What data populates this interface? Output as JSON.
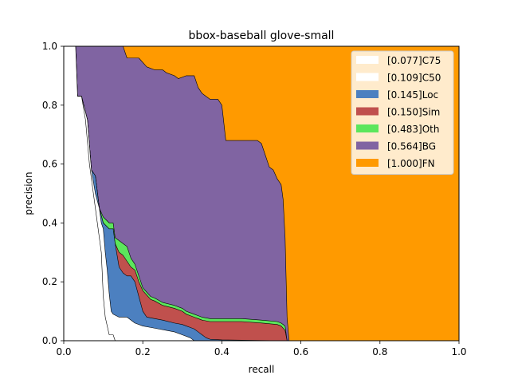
{
  "chart_data": {
    "type": "area",
    "title": "bbox-baseball glove-small",
    "xlabel": "recall",
    "ylabel": "precision",
    "xlim": [
      0,
      1
    ],
    "ylim": [
      0,
      1
    ],
    "xticks": [
      "0.0",
      "0.2",
      "0.4",
      "0.6",
      "0.8",
      "1.0"
    ],
    "yticks": [
      "0.0",
      "0.2",
      "0.4",
      "0.6",
      "0.8",
      "1.0"
    ],
    "grid": false,
    "legend_position": "top-right",
    "series": [
      {
        "name": "[0.077]C75",
        "color": "#ffffff",
        "points": [
          [
            0.0,
            1.0
          ],
          [
            0.03,
            1.0
          ],
          [
            0.035,
            0.83
          ],
          [
            0.045,
            0.83
          ],
          [
            0.055,
            0.75
          ],
          [
            0.065,
            0.6
          ],
          [
            0.075,
            0.5
          ],
          [
            0.085,
            0.4
          ],
          [
            0.095,
            0.3
          ],
          [
            0.1,
            0.15
          ],
          [
            0.105,
            0.08
          ],
          [
            0.11,
            0.05
          ],
          [
            0.115,
            0.02
          ],
          [
            0.125,
            0.02
          ],
          [
            0.13,
            0.0
          ],
          [
            1.0,
            0.0
          ]
        ]
      },
      {
        "name": "[0.109]C50",
        "color": "#ffffff",
        "points": [
          [
            0.0,
            1.0
          ],
          [
            0.03,
            1.0
          ],
          [
            0.035,
            0.83
          ],
          [
            0.045,
            0.83
          ],
          [
            0.06,
            0.75
          ],
          [
            0.07,
            0.58
          ],
          [
            0.08,
            0.5
          ],
          [
            0.09,
            0.45
          ],
          [
            0.095,
            0.4
          ],
          [
            0.1,
            0.38
          ],
          [
            0.105,
            0.3
          ],
          [
            0.11,
            0.24
          ],
          [
            0.115,
            0.16
          ],
          [
            0.12,
            0.1
          ],
          [
            0.125,
            0.09
          ],
          [
            0.14,
            0.08
          ],
          [
            0.16,
            0.08
          ],
          [
            0.18,
            0.06
          ],
          [
            0.2,
            0.05
          ],
          [
            0.22,
            0.045
          ],
          [
            0.24,
            0.04
          ],
          [
            0.26,
            0.035
          ],
          [
            0.28,
            0.03
          ],
          [
            0.3,
            0.02
          ],
          [
            0.32,
            0.01
          ],
          [
            0.33,
            0.0
          ],
          [
            1.0,
            0.0
          ]
        ]
      },
      {
        "name": "[0.145]Loc",
        "color": "#4c80c0",
        "points": [
          [
            0.0,
            1.0
          ],
          [
            0.03,
            1.0
          ],
          [
            0.035,
            0.83
          ],
          [
            0.045,
            0.83
          ],
          [
            0.06,
            0.75
          ],
          [
            0.07,
            0.58
          ],
          [
            0.08,
            0.56
          ],
          [
            0.09,
            0.45
          ],
          [
            0.1,
            0.4
          ],
          [
            0.115,
            0.38
          ],
          [
            0.125,
            0.38
          ],
          [
            0.13,
            0.33
          ],
          [
            0.14,
            0.25
          ],
          [
            0.15,
            0.23
          ],
          [
            0.16,
            0.22
          ],
          [
            0.17,
            0.22
          ],
          [
            0.18,
            0.2
          ],
          [
            0.19,
            0.15
          ],
          [
            0.2,
            0.1
          ],
          [
            0.21,
            0.08
          ],
          [
            0.23,
            0.075
          ],
          [
            0.25,
            0.07
          ],
          [
            0.28,
            0.06
          ],
          [
            0.3,
            0.055
          ],
          [
            0.31,
            0.05
          ],
          [
            0.32,
            0.045
          ],
          [
            0.33,
            0.04
          ],
          [
            0.34,
            0.03
          ],
          [
            0.35,
            0.02
          ],
          [
            0.36,
            0.01
          ],
          [
            0.37,
            0.005
          ],
          [
            0.4,
            0.003
          ],
          [
            0.45,
            0.002
          ],
          [
            0.5,
            0.001
          ],
          [
            0.565,
            0.0
          ],
          [
            1.0,
            0.0
          ]
        ]
      },
      {
        "name": "[0.150]Sim",
        "color": "#c0504d",
        "points": [
          [
            0.0,
            1.0
          ],
          [
            0.03,
            1.0
          ],
          [
            0.035,
            0.83
          ],
          [
            0.045,
            0.83
          ],
          [
            0.06,
            0.75
          ],
          [
            0.07,
            0.58
          ],
          [
            0.08,
            0.56
          ],
          [
            0.09,
            0.45
          ],
          [
            0.1,
            0.4
          ],
          [
            0.115,
            0.38
          ],
          [
            0.125,
            0.38
          ],
          [
            0.13,
            0.33
          ],
          [
            0.14,
            0.3
          ],
          [
            0.15,
            0.29
          ],
          [
            0.16,
            0.27
          ],
          [
            0.17,
            0.25
          ],
          [
            0.18,
            0.24
          ],
          [
            0.19,
            0.2
          ],
          [
            0.2,
            0.17
          ],
          [
            0.21,
            0.155
          ],
          [
            0.22,
            0.14
          ],
          [
            0.23,
            0.135
          ],
          [
            0.25,
            0.12
          ],
          [
            0.28,
            0.11
          ],
          [
            0.3,
            0.1
          ],
          [
            0.31,
            0.09
          ],
          [
            0.32,
            0.085
          ],
          [
            0.33,
            0.08
          ],
          [
            0.34,
            0.075
          ],
          [
            0.35,
            0.07
          ],
          [
            0.37,
            0.065
          ],
          [
            0.4,
            0.065
          ],
          [
            0.45,
            0.065
          ],
          [
            0.5,
            0.06
          ],
          [
            0.54,
            0.055
          ],
          [
            0.55,
            0.05
          ],
          [
            0.56,
            0.035
          ],
          [
            0.565,
            0.0
          ],
          [
            1.0,
            0.0
          ]
        ]
      },
      {
        "name": "[0.483]Oth",
        "color": "#5ce65c",
        "points": [
          [
            0.0,
            1.0
          ],
          [
            0.03,
            1.0
          ],
          [
            0.035,
            0.83
          ],
          [
            0.045,
            0.83
          ],
          [
            0.06,
            0.75
          ],
          [
            0.07,
            0.58
          ],
          [
            0.08,
            0.56
          ],
          [
            0.09,
            0.45
          ],
          [
            0.1,
            0.42
          ],
          [
            0.115,
            0.4
          ],
          [
            0.125,
            0.4
          ],
          [
            0.13,
            0.35
          ],
          [
            0.15,
            0.33
          ],
          [
            0.16,
            0.32
          ],
          [
            0.17,
            0.28
          ],
          [
            0.18,
            0.26
          ],
          [
            0.19,
            0.22
          ],
          [
            0.2,
            0.18
          ],
          [
            0.21,
            0.165
          ],
          [
            0.22,
            0.15
          ],
          [
            0.23,
            0.145
          ],
          [
            0.25,
            0.13
          ],
          [
            0.28,
            0.12
          ],
          [
            0.3,
            0.11
          ],
          [
            0.31,
            0.1
          ],
          [
            0.32,
            0.095
          ],
          [
            0.33,
            0.09
          ],
          [
            0.34,
            0.085
          ],
          [
            0.35,
            0.08
          ],
          [
            0.37,
            0.075
          ],
          [
            0.4,
            0.075
          ],
          [
            0.45,
            0.075
          ],
          [
            0.5,
            0.07
          ],
          [
            0.54,
            0.065
          ],
          [
            0.55,
            0.06
          ],
          [
            0.56,
            0.05
          ],
          [
            0.565,
            0.0
          ],
          [
            1.0,
            0.0
          ]
        ]
      },
      {
        "name": "[0.564]BG",
        "color": "#8064a2",
        "points": [
          [
            0.0,
            1.0
          ],
          [
            0.03,
            1.0
          ],
          [
            0.05,
            1.0
          ],
          [
            0.1,
            1.0
          ],
          [
            0.15,
            1.0
          ],
          [
            0.16,
            0.96
          ],
          [
            0.19,
            0.96
          ],
          [
            0.21,
            0.93
          ],
          [
            0.23,
            0.92
          ],
          [
            0.25,
            0.92
          ],
          [
            0.26,
            0.91
          ],
          [
            0.28,
            0.9
          ],
          [
            0.29,
            0.89
          ],
          [
            0.31,
            0.9
          ],
          [
            0.33,
            0.9
          ],
          [
            0.34,
            0.86
          ],
          [
            0.35,
            0.84
          ],
          [
            0.36,
            0.83
          ],
          [
            0.37,
            0.82
          ],
          [
            0.38,
            0.82
          ],
          [
            0.39,
            0.82
          ],
          [
            0.4,
            0.8
          ],
          [
            0.41,
            0.68
          ],
          [
            0.43,
            0.68
          ],
          [
            0.46,
            0.68
          ],
          [
            0.49,
            0.68
          ],
          [
            0.5,
            0.67
          ],
          [
            0.51,
            0.63
          ],
          [
            0.52,
            0.59
          ],
          [
            0.53,
            0.58
          ],
          [
            0.54,
            0.55
          ],
          [
            0.55,
            0.53
          ],
          [
            0.555,
            0.48
          ],
          [
            0.56,
            0.35
          ],
          [
            0.565,
            0.08
          ],
          [
            0.57,
            0.0
          ],
          [
            1.0,
            0.0
          ]
        ]
      },
      {
        "name": "[1.000]FN",
        "color": "#ff9a00",
        "points": [
          [
            0.0,
            1.0
          ],
          [
            1.0,
            1.0
          ],
          [
            1.0,
            0.0
          ]
        ]
      }
    ]
  }
}
